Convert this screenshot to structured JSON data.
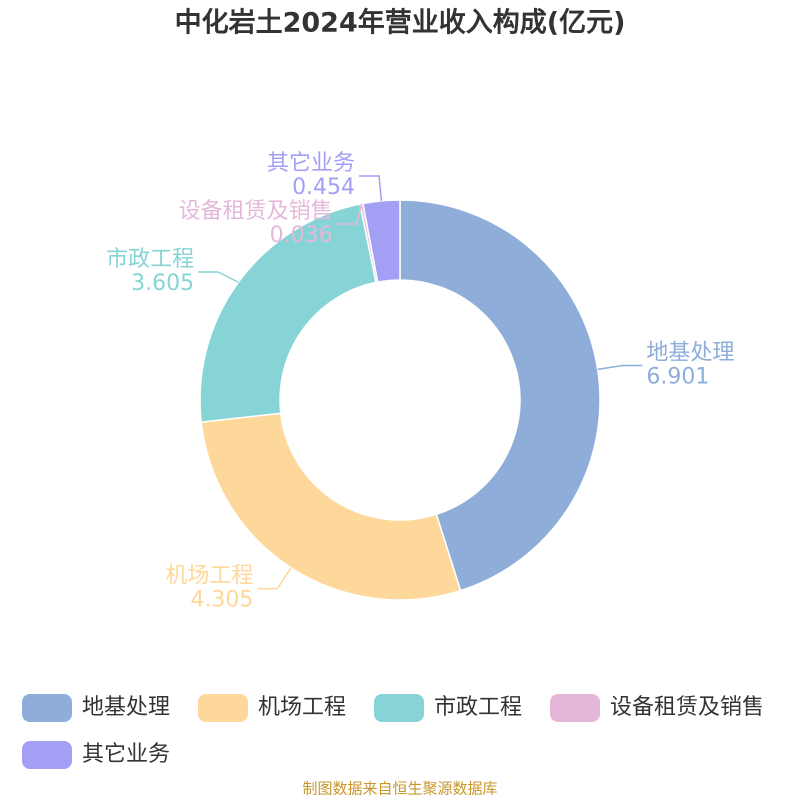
{
  "chart_data": {
    "type": "donut",
    "title": "中化岩土2024年营业收入构成(亿元)",
    "categories": [
      "地基处理",
      "机场工程",
      "市政工程",
      "设备租赁及销售",
      "其它业务"
    ],
    "values": [
      6.901,
      4.305,
      3.605,
      0.036,
      0.454
    ],
    "colors": [
      "#8eaed9",
      "#fdd89a",
      "#86d4d6",
      "#e5b7d9",
      "#a29ff5"
    ],
    "source": "制图数据来自恒生聚源数据库"
  }
}
